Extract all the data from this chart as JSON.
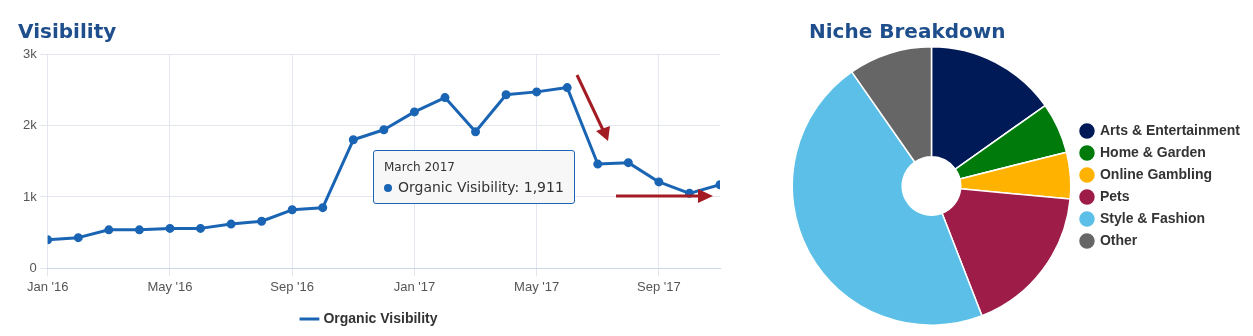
{
  "chart_data": [
    {
      "type": "line",
      "title": "Visibility",
      "x": [
        "2016-01",
        "2016-02",
        "2016-03",
        "2016-04",
        "2016-05",
        "2016-06",
        "2016-07",
        "2016-08",
        "2016-09",
        "2016-10",
        "2016-11",
        "2016-12",
        "2017-01",
        "2017-02",
        "2017-03",
        "2017-04",
        "2017-05",
        "2017-06",
        "2017-07",
        "2017-08",
        "2017-09",
        "2017-10",
        "2017-11"
      ],
      "series": [
        {
          "name": "Organic Visibility",
          "color": "#1a64b4",
          "values": [
            400,
            430,
            540,
            540,
            560,
            560,
            620,
            660,
            820,
            850,
            1800,
            1940,
            2190,
            2390,
            1911,
            2430,
            2470,
            2530,
            1460,
            1480,
            1210,
            1050,
            1170
          ]
        }
      ],
      "xlim": [
        "2016-01",
        "2017-11"
      ],
      "xticks": [
        {
          "value": "2016-01",
          "label": "Jan '16"
        },
        {
          "value": "2016-05",
          "label": "May '16"
        },
        {
          "value": "2016-09",
          "label": "Sep '16"
        },
        {
          "value": "2017-01",
          "label": "Jan '17"
        },
        {
          "value": "2017-05",
          "label": "May '17"
        },
        {
          "value": "2017-09",
          "label": "Sep '17"
        }
      ],
      "ylim": [
        0,
        3000
      ],
      "yticks": [
        0,
        {
          "value": 1000,
          "label": "1k"
        },
        {
          "value": 2000,
          "label": "2k"
        },
        {
          "value": 3000,
          "label": "3k"
        }
      ],
      "grid": true,
      "legend": "bottom",
      "marker": "circle",
      "annotations": [
        "March 2017",
        "Organic Visibility: 1,911"
      ]
    },
    {
      "type": "donut",
      "title": "Niche Breakdown",
      "categories": [
        "Arts & Entertainment",
        "Home & Garden",
        "Online Gambling",
        "Pets",
        "Style & Fashion",
        "Other"
      ],
      "values": [
        15.2,
        5.9,
        5.4,
        17.6,
        46.2,
        9.7
      ],
      "colors": [
        "#001a57",
        "#007a0a",
        "#ffb300",
        "#9e1c48",
        "#5bbfe7",
        "#666666"
      ],
      "legend": "right"
    }
  ]
}
